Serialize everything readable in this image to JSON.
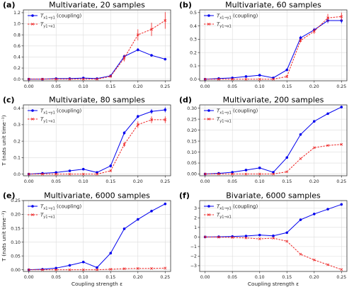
{
  "chart_data": [
    {
      "type": "line",
      "letter": "(a)",
      "title": "Multivariate, 20 samples",
      "xlabel": "",
      "ylabel": "",
      "x": [
        0.0,
        0.025,
        0.05,
        0.075,
        0.1,
        0.125,
        0.15,
        0.175,
        0.2,
        0.225,
        0.25
      ],
      "xticks": [
        "0.00",
        "0.05",
        "0.10",
        "0.15",
        "0.20",
        "0.25"
      ],
      "xlim": [
        -0.01,
        0.26
      ],
      "ylim": [
        -0.03,
        1.25
      ],
      "yticks": [
        "0.0",
        "0.2",
        "0.4",
        "0.6",
        "0.8",
        "1.0",
        "1.2"
      ],
      "grid": true,
      "legend_loc": "upper-left",
      "series": [
        {
          "name": "T_{x1→y1} (coupling)",
          "legend_main": "T",
          "legend_sub": "x1→y1",
          "legend_suffix": " (coupling)",
          "color": "#0000ee",
          "marker": "dot",
          "linestyle": "solid",
          "values": [
            0.0,
            0.0,
            0.01,
            0.01,
            0.02,
            0.01,
            0.06,
            0.41,
            0.53,
            0.43,
            0.36
          ],
          "errors": [
            0,
            0,
            0.01,
            0.01,
            0.01,
            0.01,
            0.02,
            0.03,
            0.03,
            0.02,
            0.02
          ]
        },
        {
          "name": "T_{y1→x1}",
          "legend_main": "T",
          "legend_sub": "y1→x1",
          "legend_suffix": "",
          "color": "#ee2222",
          "marker": "x",
          "linestyle": "dashed",
          "values": [
            0.0,
            0.0,
            0.0,
            0.0,
            0.0,
            0.0,
            0.05,
            0.38,
            0.8,
            0.9,
            1.06
          ],
          "errors": [
            0,
            0,
            0,
            0,
            0,
            0,
            0.02,
            0.06,
            0.1,
            0.12,
            0.15
          ]
        }
      ]
    },
    {
      "type": "line",
      "letter": "(b)",
      "title": "Multivariate, 60 samples",
      "xlabel": "",
      "ylabel": "",
      "x": [
        0.0,
        0.025,
        0.05,
        0.075,
        0.1,
        0.125,
        0.15,
        0.175,
        0.2,
        0.225,
        0.25
      ],
      "xticks": [
        "0.00",
        "0.05",
        "0.10",
        "0.15",
        "0.20",
        "0.25"
      ],
      "xlim": [
        -0.01,
        0.26
      ],
      "ylim": [
        -0.012,
        0.52
      ],
      "yticks": [
        "0.0",
        "0.1",
        "0.2",
        "0.3",
        "0.4",
        "0.5"
      ],
      "grid": true,
      "legend_loc": "upper-left",
      "series": [
        {
          "name": "T_{x1→y1} (coupling)",
          "legend_main": "T",
          "legend_sub": "x1→y1",
          "legend_suffix": " (coupling)",
          "color": "#0000ee",
          "marker": "dot",
          "linestyle": "solid",
          "values": [
            0.0,
            0.005,
            0.01,
            0.02,
            0.03,
            0.01,
            0.07,
            0.31,
            0.37,
            0.44,
            0.44
          ],
          "errors": [
            0,
            0,
            0.003,
            0.003,
            0.004,
            0.003,
            0.01,
            0.015,
            0.015,
            0.02,
            0.02
          ]
        },
        {
          "name": "T_{y1→x1}",
          "legend_main": "T",
          "legend_sub": "y1→x1",
          "legend_suffix": "",
          "color": "#ee2222",
          "marker": "x",
          "linestyle": "dashed",
          "values": [
            0.0,
            0.0,
            0.0,
            0.0,
            0.0,
            0.0,
            0.02,
            0.29,
            0.36,
            0.46,
            0.47
          ],
          "errors": [
            0,
            0,
            0,
            0,
            0,
            0,
            0.01,
            0.015,
            0.02,
            0.03,
            0.03
          ]
        }
      ]
    },
    {
      "type": "line",
      "letter": "(c)",
      "title": "Multivariate, 80 samples",
      "xlabel": "",
      "ylabel": "T (nats unit time⁻¹)",
      "x": [
        0.0,
        0.025,
        0.05,
        0.075,
        0.1,
        0.125,
        0.15,
        0.175,
        0.2,
        0.225,
        0.25
      ],
      "xticks": [
        "0.00",
        "0.05",
        "0.10",
        "0.15",
        "0.20",
        "0.25"
      ],
      "xlim": [
        -0.01,
        0.26
      ],
      "ylim": [
        -0.01,
        0.42
      ],
      "yticks": [
        "0.0",
        "0.1",
        "0.2",
        "0.3",
        "0.4"
      ],
      "grid": true,
      "legend_loc": "upper-left",
      "series": [
        {
          "name": "T_{x1→y1} (coupling)",
          "legend_main": "T",
          "legend_sub": "x1→y1",
          "legend_suffix": " (coupling)",
          "color": "#0000ee",
          "marker": "dot",
          "linestyle": "solid",
          "values": [
            0.0,
            0.005,
            0.01,
            0.02,
            0.03,
            0.01,
            0.05,
            0.25,
            0.35,
            0.38,
            0.39
          ],
          "errors": [
            0,
            0,
            0.003,
            0.003,
            0.003,
            0.003,
            0.01,
            0.01,
            0.01,
            0.015,
            0.015
          ]
        },
        {
          "name": "T_{y1→x1}",
          "legend_main": "T",
          "legend_sub": "y1→x1",
          "legend_suffix": "",
          "color": "#ee2222",
          "marker": "x",
          "linestyle": "dashed",
          "values": [
            0.0,
            0.0,
            0.0,
            0.0,
            0.0,
            0.0,
            0.02,
            0.18,
            0.3,
            0.33,
            0.33
          ],
          "errors": [
            0,
            0,
            0,
            0,
            0,
            0,
            0.005,
            0.015,
            0.02,
            0.02,
            0.02
          ]
        }
      ]
    },
    {
      "type": "line",
      "letter": "(d)",
      "title": "Multivariate, 200 samples",
      "xlabel": "",
      "ylabel": "",
      "x": [
        0.0,
        0.025,
        0.05,
        0.075,
        0.1,
        0.125,
        0.15,
        0.175,
        0.2,
        0.225,
        0.25
      ],
      "xticks": [
        "0.00",
        "0.05",
        "0.10",
        "0.15",
        "0.20",
        "0.25"
      ],
      "xlim": [
        -0.01,
        0.26
      ],
      "ylim": [
        -0.008,
        0.315
      ],
      "yticks": [
        "0.00",
        "0.05",
        "0.10",
        "0.15",
        "0.20",
        "0.25",
        "0.30"
      ],
      "grid": true,
      "legend_loc": "upper-left",
      "series": [
        {
          "name": "T_{x1→y1} (coupling)",
          "legend_main": "T",
          "legend_sub": "x1→y1",
          "legend_suffix": " (coupling)",
          "color": "#0000ee",
          "marker": "dot",
          "linestyle": "solid",
          "values": [
            0.0,
            0.003,
            0.008,
            0.018,
            0.028,
            0.008,
            0.075,
            0.18,
            0.24,
            0.275,
            0.305
          ],
          "errors": [
            0,
            0,
            0,
            0,
            0,
            0,
            0,
            0,
            0,
            0,
            0
          ]
        },
        {
          "name": "T_{y1→x1}",
          "legend_main": "T",
          "legend_sub": "y1→x1",
          "legend_suffix": "",
          "color": "#ee2222",
          "marker": "x",
          "linestyle": "dashed",
          "values": [
            0.0,
            0.0,
            0.0,
            0.0,
            0.0,
            0.0,
            0.01,
            0.07,
            0.12,
            0.13,
            0.135
          ],
          "errors": [
            0,
            0,
            0,
            0,
            0,
            0,
            0,
            0,
            0,
            0,
            0
          ]
        }
      ]
    },
    {
      "type": "line",
      "letter": "(e)",
      "title": "Multivariate, 6000 samples",
      "xlabel": "Coupling strength ε",
      "ylabel": "T (nats unit time⁻¹)",
      "x": [
        0.0,
        0.025,
        0.05,
        0.075,
        0.1,
        0.125,
        0.15,
        0.175,
        0.2,
        0.225,
        0.25
      ],
      "xticks": [
        "0.00",
        "0.05",
        "0.10",
        "0.15",
        "0.20",
        "0.25"
      ],
      "xlim": [
        -0.01,
        0.26
      ],
      "ylim": [
        -0.006,
        0.25
      ],
      "yticks": [
        "0.00",
        "0.05",
        "0.10",
        "0.15",
        "0.20",
        "0.25"
      ],
      "grid": true,
      "legend_loc": "upper-left",
      "series": [
        {
          "name": "T_{x1→y1} (coupling)",
          "legend_main": "T",
          "legend_sub": "x1→y1",
          "legend_suffix": " (coupling)",
          "color": "#0000ee",
          "marker": "dot",
          "linestyle": "solid",
          "values": [
            0.0,
            0.002,
            0.006,
            0.016,
            0.028,
            0.008,
            0.06,
            0.148,
            0.182,
            0.212,
            0.238
          ],
          "errors": [
            0,
            0,
            0,
            0,
            0,
            0,
            0,
            0,
            0,
            0,
            0
          ]
        },
        {
          "name": "T_{y1→x1}",
          "legend_main": "T",
          "legend_sub": "y1→x1",
          "legend_suffix": "",
          "color": "#ee2222",
          "marker": "x",
          "linestyle": "dashed",
          "values": [
            0.0,
            0.0,
            0.0,
            0.0,
            0.0,
            0.0,
            0.002,
            0.004,
            0.005,
            0.005,
            0.006
          ],
          "errors": [
            0,
            0,
            0,
            0,
            0,
            0,
            0,
            0,
            0,
            0,
            0
          ]
        }
      ]
    },
    {
      "type": "line",
      "letter": "(f)",
      "title": "Bivariate, 6000 samples",
      "xlabel": "Coupling strength ε",
      "ylabel": "",
      "x": [
        0.0,
        0.025,
        0.05,
        0.075,
        0.1,
        0.125,
        0.15,
        0.175,
        0.2,
        0.225,
        0.25
      ],
      "xticks": [
        "0.00",
        "0.05",
        "0.10",
        "0.15",
        "0.20",
        "0.25"
      ],
      "xlim": [
        -0.01,
        0.26
      ],
      "ylim": [
        -3.6,
        3.8
      ],
      "yticks": [
        "−3",
        "−2",
        "−1",
        "0",
        "1",
        "2",
        "3"
      ],
      "grid": true,
      "legend_loc": "upper-left",
      "series": [
        {
          "name": "T_{x1→y1} (coupling)",
          "legend_main": "T",
          "legend_sub": "x1→y1",
          "legend_suffix": " (coupling)",
          "color": "#0000ee",
          "marker": "dot",
          "linestyle": "solid",
          "values": [
            0.0,
            0.02,
            0.05,
            0.1,
            0.2,
            0.12,
            0.45,
            1.8,
            2.4,
            2.9,
            3.4
          ],
          "errors": [
            0,
            0,
            0,
            0,
            0,
            0,
            0,
            0,
            0,
            0,
            0
          ]
        },
        {
          "name": "T_{y1→x1}",
          "legend_main": "T",
          "legend_sub": "y1→x1",
          "legend_suffix": "",
          "color": "#ee2222",
          "marker": "x",
          "linestyle": "dashed",
          "values": [
            0.0,
            -0.02,
            -0.05,
            -0.1,
            -0.2,
            -0.12,
            -0.45,
            -1.8,
            -2.4,
            -2.9,
            -3.4
          ],
          "errors": [
            0,
            0,
            0,
            0,
            0,
            0,
            0,
            0,
            0,
            0,
            0
          ]
        }
      ]
    }
  ]
}
